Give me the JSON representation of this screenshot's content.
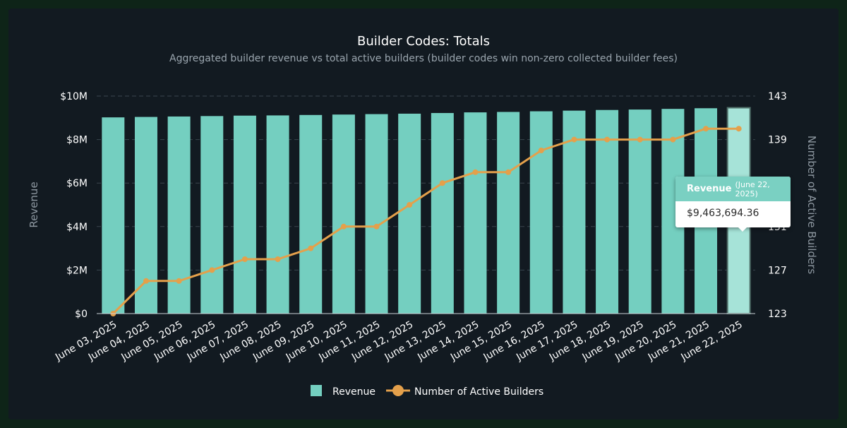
{
  "chart_data": {
    "type": "bar",
    "title": "Builder Codes: Totals",
    "subtitle": "Aggregated builder revenue vs total active builders (builder codes win non-zero collected builder fees)",
    "ylabel": "Revenue",
    "y2label": "Number of Active Builders",
    "ylim": [
      0,
      10000000
    ],
    "y2lim": [
      123,
      143
    ],
    "y_ticks": [
      "$0",
      "$2M",
      "$4M",
      "$6M",
      "$8M",
      "$10M"
    ],
    "y2_ticks": [
      "123",
      "127",
      "131",
      "135",
      "139",
      "143"
    ],
    "categories": [
      "June 03, 2025",
      "June 04, 2025",
      "June 05, 2025",
      "June 06, 2025",
      "June 07, 2025",
      "June 08, 2025",
      "June 09, 2025",
      "June 10, 2025",
      "June 11, 2025",
      "June 12, 2025",
      "June 13, 2025",
      "June 14, 2025",
      "June 15, 2025",
      "June 16, 2025",
      "June 17, 2025",
      "June 18, 2025",
      "June 19, 2025",
      "June 20, 2025",
      "June 21, 2025",
      "June 22, 2025"
    ],
    "series": [
      {
        "name": "Revenue",
        "type": "bar",
        "axis": "left",
        "color": "#74cfc0",
        "values": [
          9020000,
          9040000,
          9060000,
          9080000,
          9100000,
          9110000,
          9130000,
          9150000,
          9170000,
          9190000,
          9220000,
          9250000,
          9270000,
          9300000,
          9330000,
          9360000,
          9380000,
          9410000,
          9440000,
          9463694.36
        ]
      },
      {
        "name": "Number of Active Builders",
        "type": "line",
        "axis": "right",
        "color": "#e4a04b",
        "values": [
          123,
          126,
          126,
          127,
          128,
          128,
          129,
          131,
          131,
          133,
          135,
          136,
          136,
          138,
          139,
          139,
          139,
          139,
          140,
          140
        ]
      }
    ],
    "legend": "bottom-center",
    "grid": true,
    "highlighted_index": 19
  },
  "tooltip": {
    "series": "Revenue",
    "date": "(June 22, 2025)",
    "value": "$9,463,694.36"
  }
}
